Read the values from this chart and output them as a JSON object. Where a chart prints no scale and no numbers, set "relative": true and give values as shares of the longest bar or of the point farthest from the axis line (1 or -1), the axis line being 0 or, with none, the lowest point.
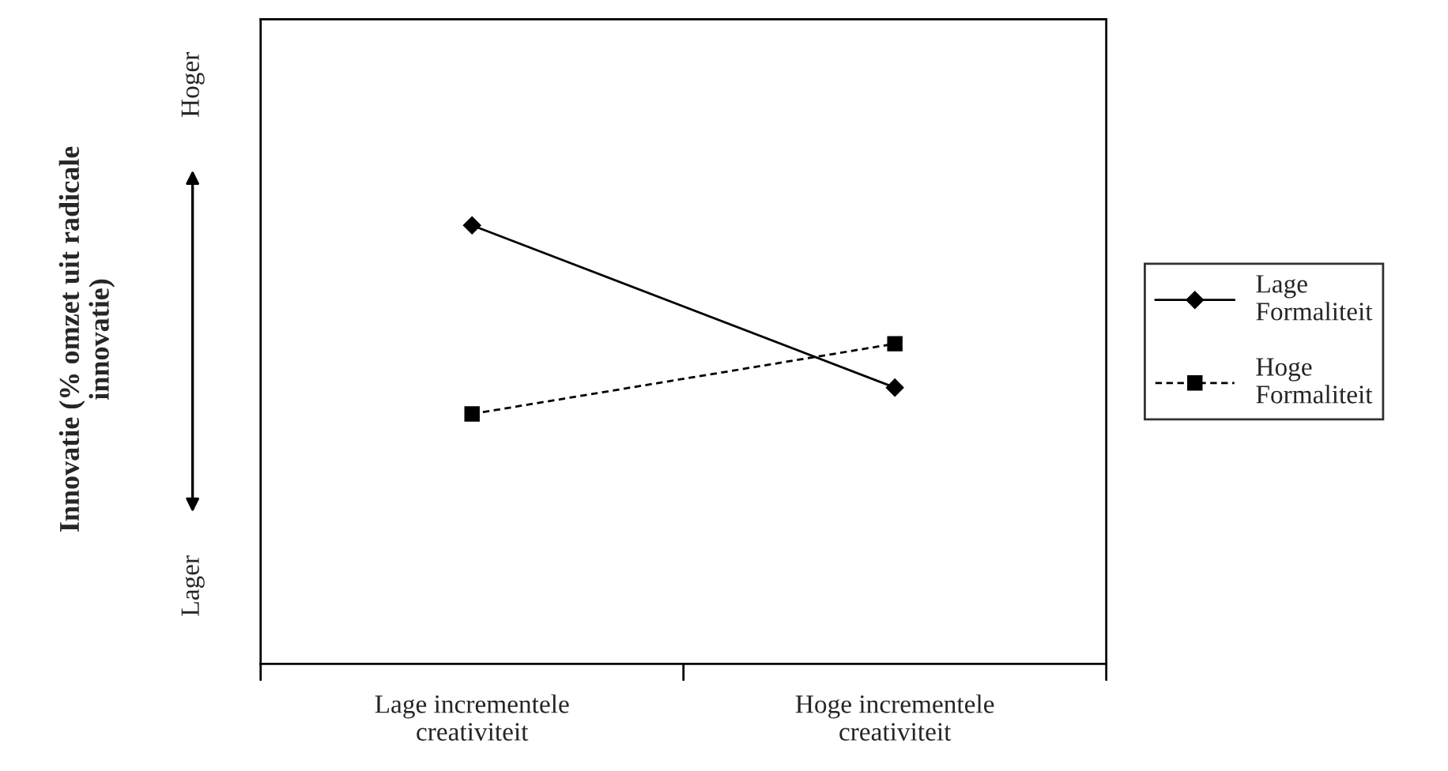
{
  "chart_data": {
    "type": "line",
    "relative": true,
    "categories": [
      "Lage incrementele creativiteit",
      "Hoge incrementele creativiteit"
    ],
    "series": [
      {
        "name": "Lage Formaliteit",
        "color": "#000000",
        "values": [
          1,
          0.63
        ],
        "marker": "diamond",
        "line_style": "solid"
      },
      {
        "name": "Hoge Formaliteit",
        "color": "#000000",
        "values": [
          0.57,
          0.73
        ],
        "marker": "square",
        "line_style": "dashed"
      }
    ],
    "annotations": [
      "Hoger",
      "Lager",
      "Innovatie (% omzet uit radicale innovatie)"
    ],
    "legend": "right",
    "grid": false
  }
}
